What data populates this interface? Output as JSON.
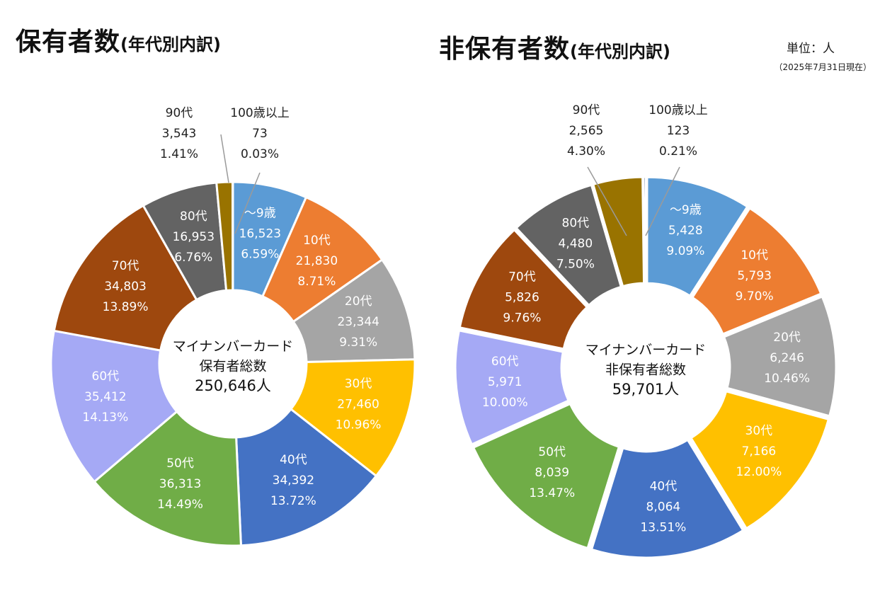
{
  "header": {
    "left_title": "保有者数",
    "left_subtitle": "(年代別内訳)",
    "right_title": "非保有者数",
    "right_subtitle": "(年代別内訳)",
    "unit": "単位：人",
    "as_of": "（2025年7月31日現在）"
  },
  "chart_data": [
    {
      "type": "pie",
      "variant": "donut",
      "title": "保有者数(年代別内訳)",
      "center_lines": [
        "マイナンバーカード",
        "保有者総数",
        "250,646人"
      ],
      "categories": [
        "～9歳",
        "10代",
        "20代",
        "30代",
        "40代",
        "50代",
        "60代",
        "70代",
        "80代",
        "90代",
        "100歳以上"
      ],
      "values": [
        16523,
        21830,
        23344,
        27460,
        34392,
        36313,
        35412,
        34803,
        16953,
        3543,
        73
      ],
      "value_labels": [
        "16,523",
        "21,830",
        "23,344",
        "27,460",
        "34,392",
        "36,313",
        "35,412",
        "34,803",
        "16,953",
        "3,543",
        "73"
      ],
      "percent_labels": [
        "6.59%",
        "8.71%",
        "9.31%",
        "10.96%",
        "13.72%",
        "14.49%",
        "14.13%",
        "13.89%",
        "6.76%",
        "1.41%",
        "0.03%"
      ],
      "colors": [
        "#5b9bd5",
        "#ed7d31",
        "#a5a5a5",
        "#ffc000",
        "#4472c4",
        "#70ad47",
        "#a5a9f5",
        "#9e480e",
        "#636363",
        "#997300",
        "#264478"
      ]
    },
    {
      "type": "pie",
      "variant": "donut",
      "title": "非保有者数(年代別内訳)",
      "center_lines": [
        "マイナンバーカード",
        "非保有者総数",
        "59,701人"
      ],
      "categories": [
        "～9歳",
        "10代",
        "20代",
        "30代",
        "40代",
        "50代",
        "60代",
        "70代",
        "80代",
        "90代",
        "100歳以上"
      ],
      "values": [
        5428,
        5793,
        6246,
        7166,
        8064,
        8039,
        5971,
        5826,
        4480,
        2565,
        123
      ],
      "value_labels": [
        "5,428",
        "5,793",
        "6,246",
        "7,166",
        "8,064",
        "8,039",
        "5,971",
        "5,826",
        "4,480",
        "2,565",
        "123"
      ],
      "percent_labels": [
        "9.09%",
        "9.70%",
        "10.46%",
        "12.00%",
        "13.51%",
        "13.47%",
        "10.00%",
        "9.76%",
        "7.50%",
        "4.30%",
        "0.21%"
      ],
      "colors": [
        "#5b9bd5",
        "#ed7d31",
        "#a5a5a5",
        "#ffc000",
        "#4472c4",
        "#70ad47",
        "#a5a9f5",
        "#9e480e",
        "#636363",
        "#997300",
        "#264478"
      ]
    }
  ]
}
